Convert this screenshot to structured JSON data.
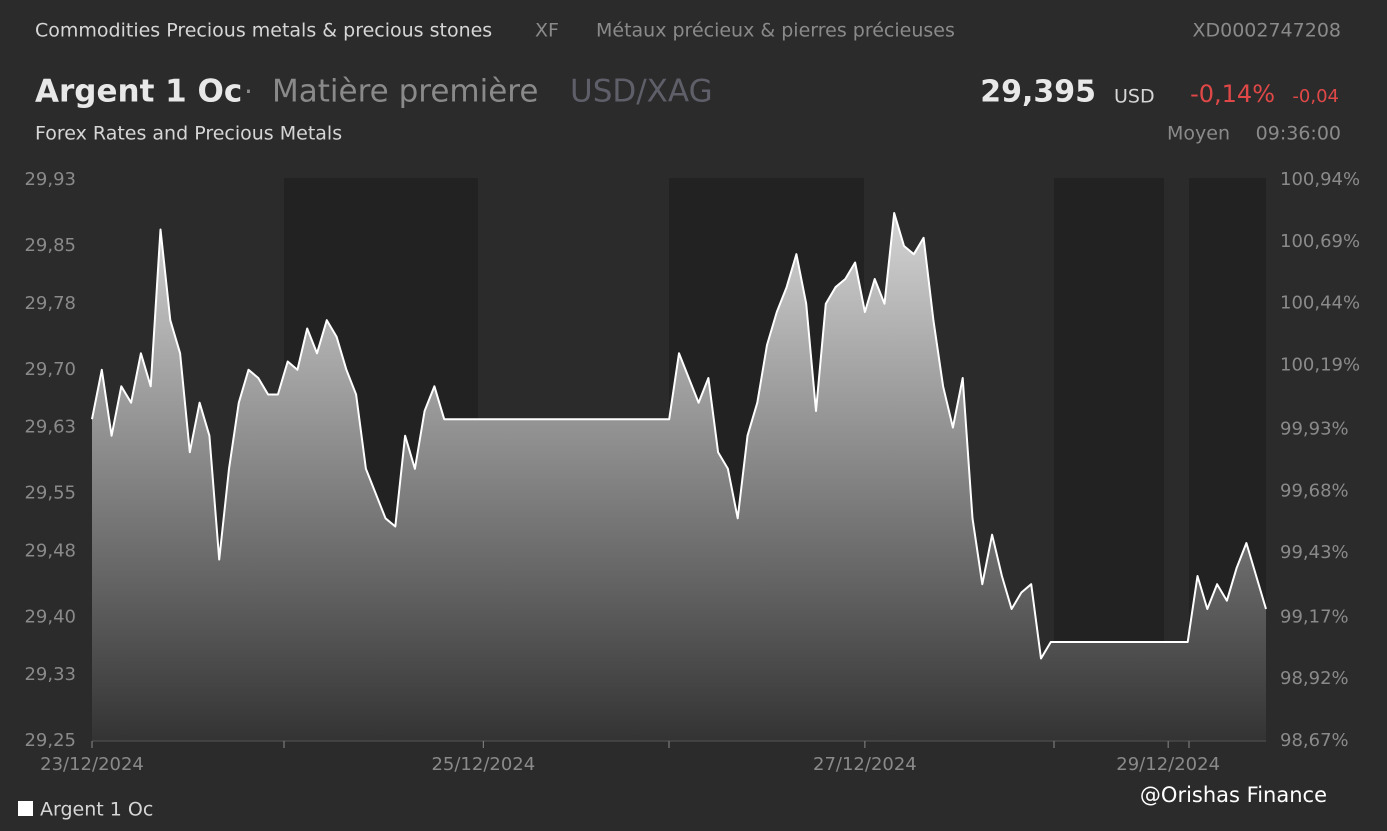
{
  "header": {
    "breadcrumb": "Commodities Precious metals & precious stones",
    "exchange": "XF",
    "category": "Métaux précieux & pierres précieuses",
    "isin": "XD0002747208",
    "name": "Argent 1 Oc",
    "kind": "Matière première",
    "pair": "USD/XAG",
    "subtitle": "Forex Rates and Precious Metals",
    "price": "29,395",
    "currency": "USD",
    "change_pct": "-0,14%",
    "change": "-0,04",
    "price_type": "Moyen",
    "time": "09:36:00"
  },
  "watermark": "@Orishas Finance",
  "chart_data": {
    "type": "area",
    "categories": [
      "23/12/2024",
      null,
      null,
      null,
      null,
      null,
      null,
      null,
      null,
      null,
      null,
      null,
      null,
      null,
      null,
      null,
      null,
      null,
      null,
      null,
      null,
      null,
      null,
      null,
      null,
      null,
      null,
      null,
      null,
      null,
      null,
      null,
      null,
      null,
      null,
      null,
      null,
      null,
      null,
      null,
      "25/12/2024",
      null,
      null,
      null,
      null,
      null,
      null,
      null,
      null,
      null,
      null,
      null,
      null,
      null,
      null,
      null,
      null,
      null,
      null,
      null,
      null,
      null,
      null,
      null,
      null,
      null,
      null,
      null,
      null,
      null,
      null,
      null,
      null,
      null,
      null,
      null,
      null,
      null,
      null,
      "27/12/2024",
      null,
      null,
      null,
      null,
      null,
      null,
      null,
      null,
      null,
      null,
      null,
      null,
      null,
      null,
      null,
      null,
      null,
      null,
      null,
      null,
      null,
      null,
      null,
      null,
      null,
      null,
      null,
      null,
      null,
      null,
      "29/12/2024",
      null,
      null,
      null,
      null,
      null,
      null,
      null,
      null,
      null,
      null
    ],
    "series": [
      {
        "name": "Argent 1 Oc",
        "color": "#ffffff",
        "values": [
          29.64,
          29.7,
          29.62,
          29.68,
          29.66,
          29.72,
          29.68,
          29.87,
          29.76,
          29.72,
          29.6,
          29.66,
          29.62,
          29.47,
          29.58,
          29.66,
          29.7,
          29.69,
          29.67,
          29.67,
          29.71,
          29.7,
          29.75,
          29.72,
          29.76,
          29.74,
          29.7,
          29.67,
          29.58,
          29.55,
          29.52,
          29.51,
          29.62,
          29.58,
          29.65,
          29.68,
          29.64,
          29.64,
          29.64,
          29.64,
          29.64,
          29.64,
          29.64,
          29.64,
          29.64,
          29.64,
          29.64,
          29.64,
          29.64,
          29.64,
          29.64,
          29.64,
          29.64,
          29.64,
          29.64,
          29.64,
          29.64,
          29.64,
          29.64,
          29.64,
          29.72,
          29.69,
          29.66,
          29.69,
          29.6,
          29.58,
          29.52,
          29.62,
          29.66,
          29.73,
          29.77,
          29.8,
          29.84,
          29.78,
          29.65,
          29.78,
          29.8,
          29.81,
          29.83,
          29.77,
          29.81,
          29.78,
          29.89,
          29.85,
          29.84,
          29.86,
          29.76,
          29.68,
          29.63,
          29.69,
          29.52,
          29.44,
          29.5,
          29.45,
          29.41,
          29.43,
          29.44,
          29.35,
          29.37,
          29.37,
          29.37,
          29.37,
          29.37,
          29.37,
          29.37,
          29.37,
          29.37,
          29.37,
          29.37,
          29.37,
          29.37,
          29.37,
          29.37,
          29.45,
          29.41,
          29.44,
          29.42,
          29.46,
          29.49,
          29.45,
          29.41
        ]
      }
    ],
    "ylim": [
      29.25,
      29.93
    ],
    "yticks": [
      {
        "value": 29.25,
        "label": "29,25"
      },
      {
        "value": 29.33,
        "label": "29,33"
      },
      {
        "value": 29.4,
        "label": "29,40"
      },
      {
        "value": 29.48,
        "label": "29,48"
      },
      {
        "value": 29.55,
        "label": "29,55"
      },
      {
        "value": 29.63,
        "label": "29,63"
      },
      {
        "value": 29.7,
        "label": "29,70"
      },
      {
        "value": 29.78,
        "label": "29,78"
      },
      {
        "value": 29.85,
        "label": "29,85"
      },
      {
        "value": 29.93,
        "label": "29,93"
      }
    ],
    "y2lim": [
      98.67,
      100.94
    ],
    "y2ticks": [
      {
        "value": 98.67,
        "label": "98,67%"
      },
      {
        "value": 98.92,
        "label": "98,92%"
      },
      {
        "value": 99.17,
        "label": "99,17%"
      },
      {
        "value": 99.43,
        "label": "99,43%"
      },
      {
        "value": 99.68,
        "label": "99,68%"
      },
      {
        "value": 99.93,
        "label": "99,93%"
      },
      {
        "value": 100.19,
        "label": "100,19%"
      },
      {
        "value": 100.44,
        "label": "100,44%"
      },
      {
        "value": 100.69,
        "label": "100,69%"
      },
      {
        "value": 100.94,
        "label": "100,94%"
      }
    ]
  }
}
